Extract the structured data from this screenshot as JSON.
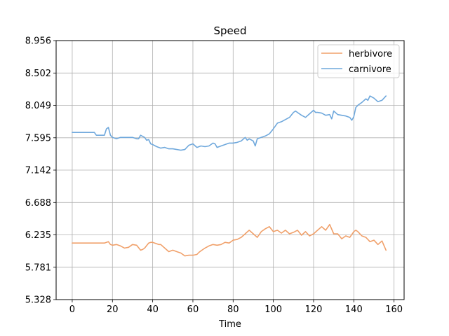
{
  "chart_data": {
    "type": "line",
    "title": "Speed",
    "xlabel": "Time",
    "ylabel": "",
    "xlim": [
      -8,
      165
    ],
    "ylim": [
      5.328,
      8.956
    ],
    "xticks": [
      0,
      20,
      40,
      60,
      80,
      100,
      120,
      140,
      160
    ],
    "xtick_labels": [
      "0",
      "20",
      "40",
      "60",
      "80",
      "100",
      "120",
      "140",
      "160"
    ],
    "yticks": [
      5.328,
      5.781,
      6.235,
      6.688,
      7.142,
      7.595,
      8.049,
      8.502,
      8.956
    ],
    "ytick_labels": [
      "5.328",
      "5.781",
      "6.235",
      "6.688",
      "7.142",
      "7.595",
      "8.049",
      "8.502",
      "8.956"
    ],
    "grid": true,
    "legend_position": "top-right",
    "series": [
      {
        "name": "herbivore",
        "color": "#f0a06a",
        "x": [
          0,
          2,
          4,
          6,
          8,
          10,
          12,
          14,
          16,
          17,
          18,
          19,
          20,
          22,
          24,
          26,
          28,
          30,
          32,
          34,
          35,
          36,
          38,
          39,
          40,
          42,
          43,
          44,
          46,
          48,
          50,
          52,
          54,
          56,
          58,
          60,
          62,
          63,
          64,
          66,
          68,
          70,
          72,
          74,
          76,
          78,
          80,
          82,
          84,
          86,
          88,
          90,
          92,
          94,
          96,
          98,
          100,
          102,
          104,
          106,
          108,
          110,
          112,
          114,
          116,
          118,
          120,
          122,
          124,
          126,
          128,
          130,
          132,
          134,
          136,
          138,
          140,
          141,
          142,
          144,
          146,
          148,
          150,
          152,
          154,
          156
        ],
        "y": [
          6.12,
          6.12,
          6.12,
          6.12,
          6.12,
          6.12,
          6.12,
          6.12,
          6.12,
          6.13,
          6.14,
          6.1,
          6.09,
          6.1,
          6.08,
          6.05,
          6.06,
          6.1,
          6.09,
          6.02,
          6.03,
          6.05,
          6.12,
          6.13,
          6.13,
          6.11,
          6.1,
          6.1,
          6.05,
          6.0,
          6.02,
          6.0,
          5.98,
          5.94,
          5.95,
          5.95,
          5.96,
          5.99,
          6.01,
          6.05,
          6.08,
          6.1,
          6.09,
          6.1,
          6.13,
          6.12,
          6.16,
          6.17,
          6.2,
          6.25,
          6.3,
          6.25,
          6.2,
          6.28,
          6.32,
          6.35,
          6.28,
          6.3,
          6.26,
          6.3,
          6.25,
          6.27,
          6.3,
          6.23,
          6.28,
          6.22,
          6.25,
          6.3,
          6.35,
          6.3,
          6.38,
          6.25,
          6.25,
          6.18,
          6.22,
          6.2,
          6.28,
          6.3,
          6.28,
          6.22,
          6.2,
          6.14,
          6.16,
          6.1,
          6.15,
          6.02
        ]
      },
      {
        "name": "carnivore",
        "color": "#6fa8dc",
        "x": [
          0,
          2,
          4,
          6,
          8,
          10,
          11,
          12,
          14,
          16,
          17,
          18,
          19,
          20,
          22,
          24,
          26,
          28,
          30,
          32,
          33,
          34,
          36,
          37,
          38,
          39,
          40,
          42,
          44,
          46,
          48,
          50,
          52,
          54,
          56,
          58,
          60,
          62,
          64,
          66,
          68,
          70,
          71,
          72,
          74,
          76,
          78,
          80,
          82,
          84,
          86,
          87,
          88,
          90,
          91,
          92,
          94,
          96,
          98,
          100,
          102,
          104,
          106,
          108,
          110,
          111,
          112,
          114,
          116,
          118,
          120,
          121,
          122,
          124,
          126,
          128,
          129,
          130,
          132,
          134,
          136,
          138,
          139,
          140,
          141,
          142,
          144,
          146,
          147,
          148,
          150,
          152,
          154,
          156
        ],
        "y": [
          7.67,
          7.67,
          7.67,
          7.67,
          7.67,
          7.67,
          7.67,
          7.63,
          7.63,
          7.63,
          7.72,
          7.74,
          7.63,
          7.6,
          7.58,
          7.6,
          7.6,
          7.6,
          7.6,
          7.58,
          7.58,
          7.63,
          7.6,
          7.56,
          7.57,
          7.51,
          7.5,
          7.47,
          7.45,
          7.46,
          7.44,
          7.44,
          7.43,
          7.42,
          7.43,
          7.49,
          7.51,
          7.46,
          7.48,
          7.47,
          7.48,
          7.52,
          7.51,
          7.46,
          7.48,
          7.5,
          7.52,
          7.52,
          7.53,
          7.55,
          7.6,
          7.56,
          7.58,
          7.55,
          7.48,
          7.58,
          7.6,
          7.62,
          7.65,
          7.72,
          7.8,
          7.82,
          7.85,
          7.88,
          7.95,
          7.97,
          7.95,
          7.91,
          7.88,
          7.93,
          7.98,
          7.95,
          7.95,
          7.94,
          7.91,
          7.92,
          7.86,
          7.97,
          7.92,
          7.91,
          7.9,
          7.88,
          7.84,
          7.89,
          8.02,
          8.05,
          8.09,
          8.14,
          8.12,
          8.18,
          8.15,
          8.1,
          8.12,
          8.18
        ]
      }
    ]
  }
}
